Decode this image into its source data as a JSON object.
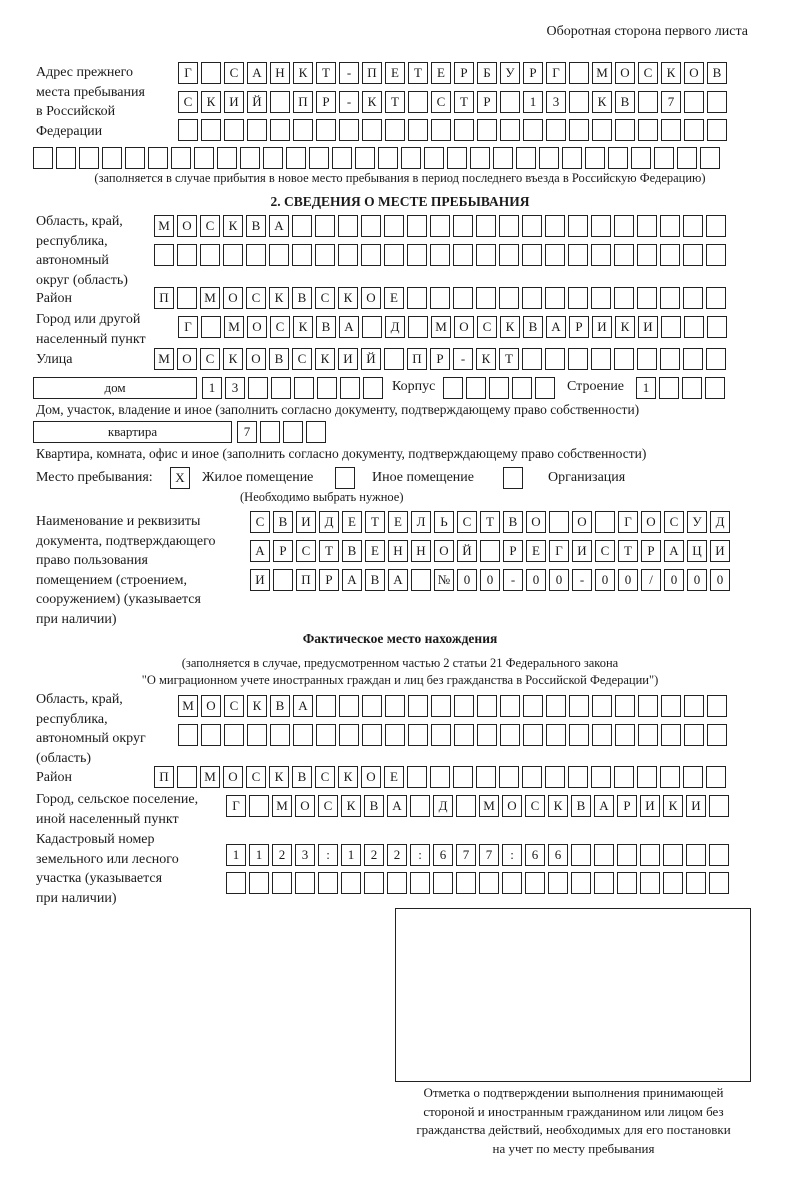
{
  "header": {
    "side_label": "Оборотная сторона первого листа"
  },
  "prev_address": {
    "label": [
      "Адрес прежнего",
      "места пребывания",
      "в Российской",
      "Федерации"
    ],
    "rows": [
      "Г САНКТ-ПЕТЕРБУРГ МОСКОВ",
      "СКИЙ ПР-КТ СТР 13 КВ 7",
      "",
      ""
    ],
    "note": "(заполняется в случае прибытия в новое место пребывания в период последнего въезда в Российскую Федерацию)"
  },
  "section2": {
    "title": "2. СВЕДЕНИЯ О МЕСТЕ ПРЕБЫВАНИЯ",
    "region_label": [
      "Область, край,",
      "республика,",
      "автономный",
      "округ (область)"
    ],
    "region_rows": [
      "МОСКВА",
      ""
    ],
    "district_label": "Район",
    "district": "П МОСКВСКОЕ",
    "city_label": [
      "Город или другой",
      "населенный пункт"
    ],
    "city": "Г МОСКВА Д МОСКВАРИКИ",
    "street_label": "Улица",
    "street": "МОСКОВСКИЙ ПР-КТ",
    "house_type": "дом",
    "house_number": "13",
    "korpus_label": "Корпус",
    "korpus": "",
    "stroenie_label": "Строение",
    "stroenie": "1",
    "house_note": "Дом, участок, владение и иное (заполнить согласно документу, подтверждающему право собственности)",
    "apt_type": "квартира",
    "apt_number": "7",
    "apt_note": "Квартира, комната, офис и иное (заполнить согласно документу, подтверждающему право собственности)",
    "stay_place_label": "Место пребывания:",
    "stay_options": [
      {
        "label": "Жилое помещение",
        "checked": true,
        "mark": "X"
      },
      {
        "label": "Иное помещение",
        "checked": false,
        "mark": ""
      },
      {
        "label": "Организация",
        "checked": false,
        "mark": ""
      }
    ],
    "stay_note": "(Необходимо выбрать нужное)",
    "doc_label": [
      "Наименование и реквизиты",
      "документа, подтверждающего",
      "право пользования",
      "помещением (строением,",
      "сооружением) (указывается",
      "при наличии)"
    ],
    "doc_rows": [
      "СВИДЕТЕЛЬСТВО О ГОСУД",
      "АРСТВЕННОЙ РЕГИСТРАЦИ",
      "И ПРАВА №00-00-00/000"
    ]
  },
  "actual": {
    "title": "Фактическое место нахождения",
    "note1": "(заполняется в случае, предусмотренном частью 2 статьи 21 Федерального закона",
    "note2": "\"О миграционном учете иностранных граждан и лиц без гражданства в Российской Федерации\")",
    "region_label": [
      "Область, край,",
      "республика,",
      "автономный округ",
      "(область)"
    ],
    "region_rows": [
      "МОСКВА",
      ""
    ],
    "district_label": "Район",
    "district": "П МОСКВСКОЕ",
    "city_label": [
      "Город, сельское поселение,",
      "иной населенный пункт"
    ],
    "city": "Г МОСКВА Д МОСКВАРИКИ",
    "cadastre_label": [
      "Кадастровый номер",
      "земельного или лесного",
      "участка (указывается",
      "при наличии)"
    ],
    "cadastre_rows": [
      "1123:122:677:66",
      ""
    ]
  },
  "confirmation": {
    "caption": [
      "Отметка о подтверждении выполнения принимающей",
      "стороной и иностранным гражданином или лицом без",
      "гражданства действий, необходимых для его постановки",
      "на учет по месту пребывания"
    ]
  }
}
